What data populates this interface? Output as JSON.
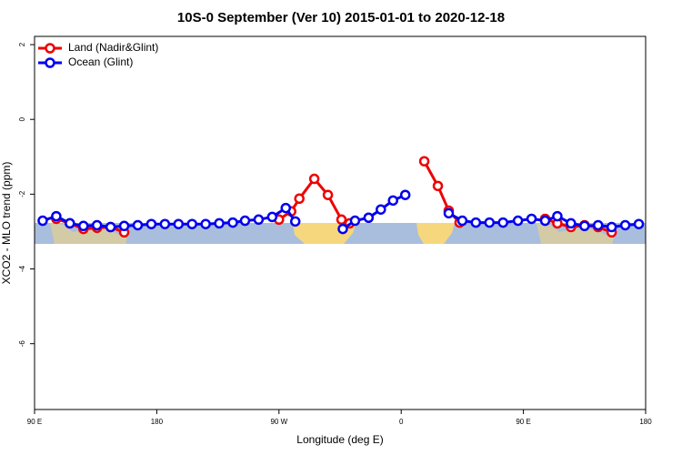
{
  "chart_data": {
    "type": "line",
    "title": "10S-0 September (Ver 10)   2015-01-01 to 2020-12-18",
    "xlabel": "Longitude (deg E)",
    "ylabel": "XCO2 - MLO trend (ppm)",
    "xlim": [
      90,
      540
    ],
    "xticks": [
      {
        "value": 90,
        "label": "90 E"
      },
      180,
      {
        "value": 270,
        "label": "90 W"
      },
      {
        "value": 360,
        "label": "0"
      },
      {
        "value": 450,
        "label": "90 E"
      },
      {
        "value": 540,
        "label": "180"
      }
    ],
    "ylim": [
      -7.76,
      2.22
    ],
    "yticks": [
      -6,
      -4,
      -2,
      0,
      2
    ],
    "legend": "upper left",
    "series": [
      {
        "name": "Land (Nadir&Glint)",
        "color": "#ee0000",
        "x": [
          106,
          116,
          126,
          136,
          146,
          156,
          null,
          270,
          279,
          285,
          296,
          306,
          316,
          322,
          null,
          377,
          387,
          395,
          403,
          null,
          466,
          475,
          485,
          495,
          505,
          515
        ],
        "values": [
          -2.66,
          -2.78,
          -2.93,
          -2.9,
          -2.88,
          -3.02,
          null,
          -2.68,
          -2.46,
          -2.12,
          -1.59,
          -2.02,
          -2.68,
          -2.78,
          null,
          -1.12,
          -1.78,
          -2.44,
          -2.76,
          null,
          -2.66,
          -2.78,
          -2.88,
          -2.83,
          -2.88,
          -3.02
        ]
      },
      {
        "name": "Ocean (Glint)",
        "color": "#0000ee",
        "x": [
          96,
          106,
          116,
          126,
          136,
          146,
          156,
          166,
          176,
          186,
          196,
          206,
          216,
          226,
          236,
          245,
          255,
          265,
          275,
          282,
          null,
          317,
          326,
          336,
          345,
          354,
          363,
          null,
          395,
          405,
          415,
          425,
          435,
          446,
          456,
          466,
          475,
          485,
          495,
          505,
          515,
          525,
          535
        ],
        "values": [
          -2.71,
          -2.59,
          -2.78,
          -2.85,
          -2.83,
          -2.88,
          -2.85,
          -2.83,
          -2.8,
          -2.8,
          -2.8,
          -2.8,
          -2.8,
          -2.78,
          -2.76,
          -2.71,
          -2.68,
          -2.61,
          -2.37,
          -2.73,
          null,
          -2.93,
          -2.71,
          -2.63,
          -2.41,
          -2.17,
          -2.02,
          null,
          -2.51,
          -2.71,
          -2.76,
          -2.76,
          -2.76,
          -2.71,
          -2.66,
          -2.71,
          -2.59,
          -2.78,
          -2.85,
          -2.83,
          -2.88,
          -2.83,
          -2.8
        ]
      }
    ]
  }
}
